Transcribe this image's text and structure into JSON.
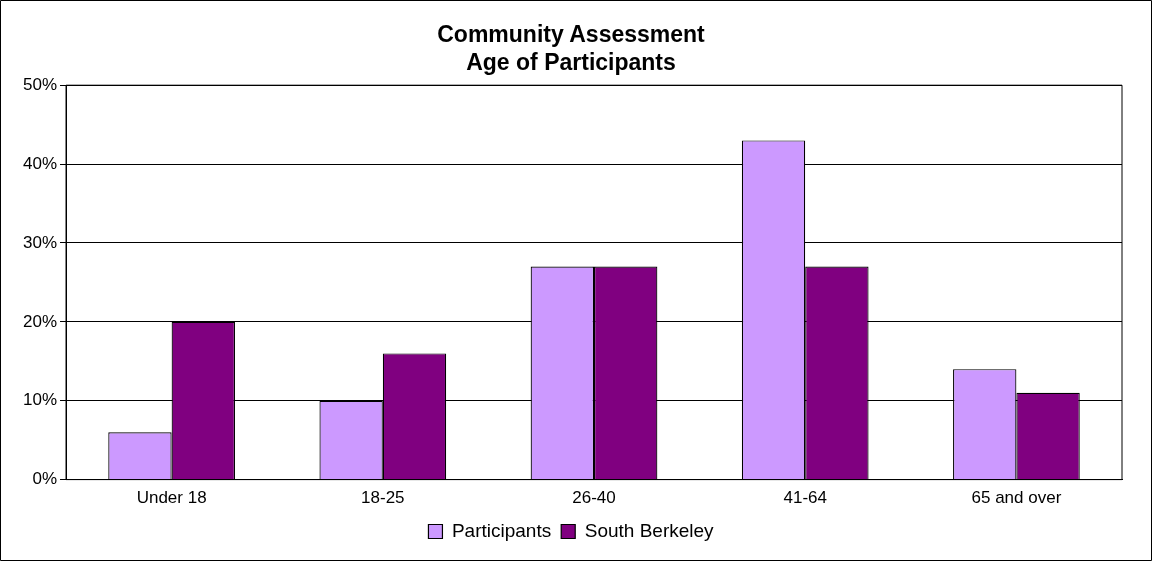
{
  "chart_data": {
    "type": "bar",
    "title": "Community Assessment\nAge of Participants",
    "categories": [
      "Under 18",
      "18-25",
      "26-40",
      "41-64",
      "65 and over"
    ],
    "series": [
      {
        "name": "Participants",
        "color": "#cc99ff",
        "values": [
          6,
          10,
          27,
          43,
          14
        ]
      },
      {
        "name": "South Berkeley",
        "color": "#800080",
        "values": [
          20,
          16,
          27,
          27,
          11
        ]
      }
    ],
    "ylim": [
      0,
      50
    ],
    "yticks": [
      {
        "value": 0,
        "label": "0%"
      },
      {
        "value": 10,
        "label": "10%"
      },
      {
        "value": 20,
        "label": "20%"
      },
      {
        "value": 30,
        "label": "30%"
      },
      {
        "value": 40,
        "label": "40%"
      },
      {
        "value": 50,
        "label": "50%"
      }
    ],
    "grid": "y",
    "legend": "bottom"
  }
}
